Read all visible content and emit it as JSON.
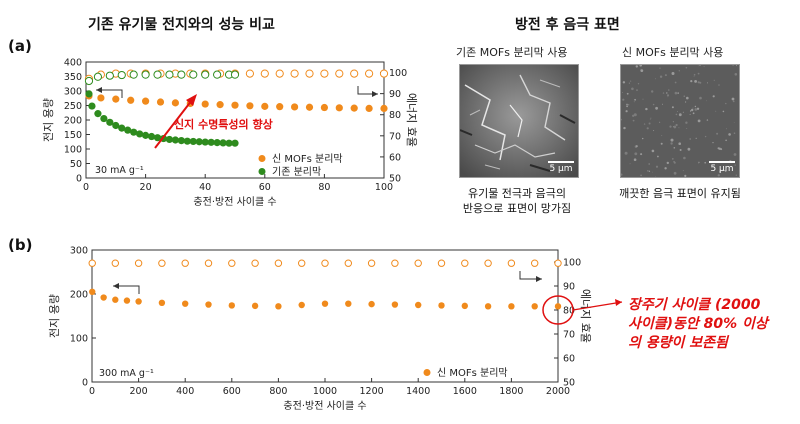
{
  "header": {
    "left_title": "기존 유기물 전지와의 성능 비교",
    "right_title": "방전 후 음극 표면"
  },
  "panel_a_label": "(a)",
  "panel_b_label": "(b)",
  "sem": {
    "left_caption": "기존 MOFs 분리막 사용",
    "right_caption": "신 MOFs 분리막 사용",
    "scale_label": "5 μm",
    "left_note_line1": "유기물 전극과 음극의",
    "left_note_line2": "반응으로 표면이 망가짐",
    "right_note": "깨끗한 음극 표면이 유지됨"
  },
  "annotation_a": "신지 수명특성의 향상",
  "annotation_b_line1": "장주기 사이클 (2000",
  "annotation_b_line2": "사이클)동안 80% 이상",
  "annotation_b_line3": "의 용량이 보존됨",
  "colors": {
    "orange": "#f08a1c",
    "green": "#2e8b1e",
    "red": "#e01010"
  },
  "chart_data": [
    {
      "type": "scatter",
      "xlabel": "충전·방전 사이클 수",
      "ylabel_left": "전지 용량",
      "ylabel_right": "에너지 효율",
      "xlim": [
        0,
        100
      ],
      "ylim_left": [
        0,
        400
      ],
      "ylim_right": [
        50,
        105
      ],
      "xticks": [
        0,
        20,
        40,
        60,
        80,
        100
      ],
      "yticks_left": [
        0,
        50,
        100,
        150,
        200,
        250,
        300,
        350,
        400
      ],
      "yticks_right": [
        50,
        60,
        70,
        80,
        90,
        100
      ],
      "condition": "30 mA g⁻¹",
      "grid": false,
      "legend_position": "bottom-right",
      "series": [
        {
          "name": "신 MOFs 분리막",
          "axis": "left",
          "marker": "filled",
          "color": "#f08a1c",
          "x": [
            1,
            5,
            10,
            15,
            20,
            25,
            30,
            35,
            40,
            45,
            50,
            55,
            60,
            65,
            70,
            75,
            80,
            85,
            90,
            95,
            100
          ],
          "y": [
            283,
            276,
            272,
            268,
            265,
            262,
            259,
            257,
            255,
            253,
            251,
            249,
            247,
            246,
            245,
            244,
            243,
            242,
            241,
            240,
            240
          ]
        },
        {
          "name": "기존 분리막",
          "axis": "left",
          "marker": "filled",
          "color": "#2e8b1e",
          "x": [
            1,
            2,
            4,
            6,
            8,
            10,
            12,
            14,
            16,
            18,
            20,
            22,
            24,
            26,
            28,
            30,
            32,
            34,
            36,
            38,
            40,
            42,
            44,
            46,
            48,
            50
          ],
          "y": [
            290,
            248,
            222,
            205,
            192,
            181,
            172,
            165,
            158,
            152,
            147,
            143,
            139,
            136,
            133,
            131,
            129,
            127,
            126,
            125,
            124,
            123,
            122,
            121,
            120,
            120
          ]
        },
        {
          "name": "",
          "axis": "right",
          "marker": "open",
          "color": "#f08a1c",
          "x": [
            1,
            5,
            10,
            15,
            20,
            25,
            30,
            35,
            40,
            45,
            50,
            55,
            60,
            65,
            70,
            75,
            80,
            85,
            90,
            95,
            100
          ],
          "y": [
            97,
            99,
            99.5,
            99.5,
            99.5,
            99.5,
            99.5,
            99.5,
            99.5,
            99.5,
            99.5,
            99.5,
            99.5,
            99.5,
            99.5,
            99.5,
            99.5,
            99.5,
            99.5,
            99.5,
            99.5
          ]
        },
        {
          "name": "",
          "axis": "right",
          "marker": "open",
          "color": "#2e8b1e",
          "x": [
            1,
            4,
            8,
            12,
            16,
            20,
            24,
            28,
            32,
            36,
            40,
            44,
            48,
            50
          ],
          "y": [
            96,
            98,
            98.5,
            98.8,
            99,
            99,
            99,
            99,
            99,
            99,
            99,
            99,
            99,
            99
          ]
        }
      ]
    },
    {
      "type": "scatter",
      "xlabel": "충전·방전 사이클 수",
      "ylabel_left": "전지 용량",
      "ylabel_right": "에너지 효율",
      "xlim": [
        0,
        2000
      ],
      "ylim_left": [
        0,
        300
      ],
      "ylim_right": [
        50,
        105
      ],
      "xticks": [
        0,
        200,
        400,
        600,
        800,
        1000,
        1200,
        1400,
        1600,
        1800,
        2000
      ],
      "yticks_left": [
        0,
        100,
        200,
        300
      ],
      "yticks_right": [
        50,
        60,
        70,
        80,
        90,
        100
      ],
      "condition": "300 mA g⁻¹",
      "grid": false,
      "legend_position": "bottom-right",
      "series": [
        {
          "name": "신 MOFs 분리막",
          "axis": "left",
          "marker": "filled",
          "color": "#f08a1c",
          "x": [
            1,
            50,
            100,
            150,
            200,
            300,
            400,
            500,
            600,
            700,
            800,
            900,
            1000,
            1100,
            1200,
            1300,
            1400,
            1500,
            1600,
            1700,
            1800,
            1900,
            2000
          ],
          "y": [
            205,
            192,
            187,
            185,
            183,
            180,
            178,
            176,
            174,
            173,
            172,
            175,
            178,
            178,
            177,
            176,
            175,
            174,
            173,
            172,
            172,
            172,
            172
          ]
        },
        {
          "name": "",
          "axis": "right",
          "marker": "open",
          "color": "#f08a1c",
          "x": [
            1,
            100,
            200,
            300,
            400,
            500,
            600,
            700,
            800,
            900,
            1000,
            1100,
            1200,
            1300,
            1400,
            1500,
            1600,
            1700,
            1800,
            1900,
            2000
          ],
          "y": [
            99.5,
            99.5,
            99.5,
            99.5,
            99.5,
            99.5,
            99.5,
            99.5,
            99.5,
            99.5,
            99.5,
            99.5,
            99.5,
            99.5,
            99.5,
            99.5,
            99.5,
            99.5,
            99.5,
            99.5,
            99.5
          ]
        }
      ]
    }
  ]
}
